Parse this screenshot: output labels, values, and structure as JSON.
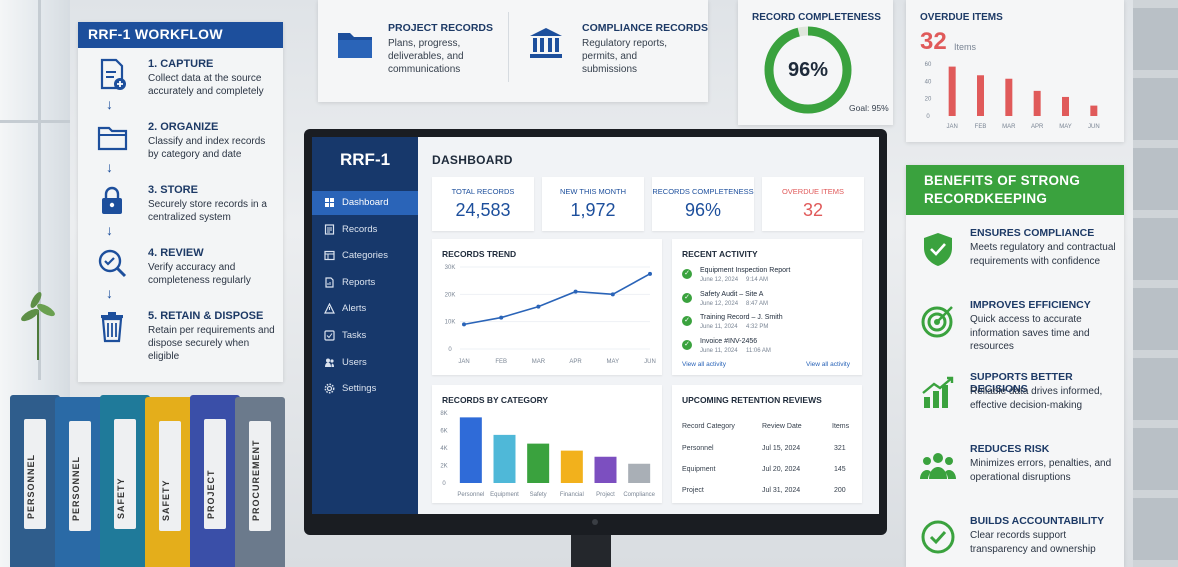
{
  "workflow": {
    "title": "RRF-1 WORKFLOW",
    "steps": [
      {
        "title": "1. CAPTURE",
        "desc": "Collect data at the source accurately and completely",
        "icon": "document-add-icon"
      },
      {
        "title": "2. ORGANIZE",
        "desc": "Classify and index records by category and date",
        "icon": "folder-icon"
      },
      {
        "title": "3. STORE",
        "desc": "Securely store records in a centralized system",
        "icon": "lock-icon"
      },
      {
        "title": "4. REVIEW",
        "desc": "Verify accuracy and completeness regularly",
        "icon": "magnify-check-icon"
      },
      {
        "title": "5. RETAIN & DISPOSE",
        "desc": "Retain per requirements and dispose securely when eligible",
        "icon": "trash-icon"
      }
    ]
  },
  "binders": [
    {
      "label": "PERSONNEL",
      "color": "#2f5d8c"
    },
    {
      "label": "PERSONNEL",
      "color": "#2a6aa6"
    },
    {
      "label": "SAFETY",
      "color": "#1f7a9a"
    },
    {
      "label": "SAFETY",
      "color": "#e4ae1b"
    },
    {
      "label": "PROJECT",
      "color": "#3a4fa8"
    },
    {
      "label": "PROCUREMENT",
      "color": "#6b7a8c"
    }
  ],
  "top_records": [
    {
      "title": "PROJECT RECORDS",
      "desc": "Plans, progress, deliverables, and communications",
      "icon": "folder-icon"
    },
    {
      "title": "COMPLIANCE RECORDS",
      "desc": "Regulatory reports, permits, and submissions",
      "icon": "building-icon"
    }
  ],
  "completeness_card": {
    "title": "RECORD COMPLETENESS",
    "value": "96%",
    "percent": 96,
    "goal": "Goal: 95%",
    "color": "#3aa23e"
  },
  "overdue_card": {
    "title": "OVERDUE ITEMS",
    "value": "32",
    "unit": "Items",
    "chart_data": {
      "type": "bar",
      "categories": [
        "JAN",
        "FEB",
        "MAR",
        "APR",
        "MAY",
        "JUN"
      ],
      "values": [
        57,
        47,
        43,
        29,
        22,
        12
      ],
      "ylim": [
        0,
        60
      ],
      "yticks": [
        "60",
        "40",
        "20",
        "0"
      ],
      "color": "#e05a5a"
    }
  },
  "benefits": {
    "title": "BENEFITS OF STRONG RECORDKEEPING",
    "items": [
      {
        "title": "ENSURES COMPLIANCE",
        "desc": "Meets regulatory and contractual requirements with confidence",
        "icon": "shield-check-icon"
      },
      {
        "title": "IMPROVES EFFICIENCY",
        "desc": "Quick access to accurate information saves time and resources",
        "icon": "target-icon"
      },
      {
        "title": "SUPPORTS BETTER DECISIONS",
        "desc": "Reliable data drives informed, effective decision-making",
        "icon": "bar-chart-icon"
      },
      {
        "title": "REDUCES RISK",
        "desc": "Minimizes errors, penalties, and operational disruptions",
        "icon": "users-icon"
      },
      {
        "title": "BUILDS ACCOUNTABILITY",
        "desc": "Clear records support transparency and ownership",
        "icon": "check-circle-icon"
      }
    ]
  },
  "app": {
    "brand": "RRF-1",
    "nav": [
      {
        "label": "Dashboard",
        "icon": "dashboard-icon",
        "active": true
      },
      {
        "label": "Records",
        "icon": "records-icon"
      },
      {
        "label": "Categories",
        "icon": "categories-icon"
      },
      {
        "label": "Reports",
        "icon": "reports-icon"
      },
      {
        "label": "Alerts",
        "icon": "alert-icon"
      },
      {
        "label": "Tasks",
        "icon": "tasks-icon"
      },
      {
        "label": "Users",
        "icon": "users-icon"
      },
      {
        "label": "Settings",
        "icon": "gear-icon"
      }
    ],
    "page_title": "DASHBOARD",
    "kpis": [
      {
        "label": "TOTAL RECORDS",
        "value": "24,583",
        "color": "#1d4f9c"
      },
      {
        "label": "NEW THIS MONTH",
        "value": "1,972",
        "color": "#1d4f9c"
      },
      {
        "label": "RECORDS COMPLETENESS",
        "value": "96%",
        "color": "#1d4f9c"
      },
      {
        "label": "OVERDUE ITEMS",
        "value": "32",
        "color": "#e05a5a"
      }
    ],
    "trend": {
      "title": "RECORDS TREND",
      "chart_data": {
        "type": "line",
        "categories": [
          "JAN",
          "FEB",
          "MAR",
          "APR",
          "MAY",
          "JUN"
        ],
        "values": [
          9000,
          11500,
          15500,
          21000,
          20000,
          27500
        ],
        "ylim": [
          0,
          30000
        ],
        "yticks": [
          "30K",
          "20K",
          "10K",
          "0"
        ],
        "color": "#2a64b8"
      }
    },
    "activity": {
      "title": "RECENT ACTIVITY",
      "items": [
        {
          "title": "Equipment Inspection Report",
          "date": "June 12, 2024",
          "time": "9:14 AM"
        },
        {
          "title": "Safety Audit – Site A",
          "date": "June 12, 2024",
          "time": "8:47 AM"
        },
        {
          "title": "Training Record – J. Smith",
          "date": "June 11, 2024",
          "time": "4:32 PM"
        },
        {
          "title": "Invoice #INV-2456",
          "date": "June 11, 2024",
          "time": "11:06 AM"
        }
      ],
      "link_left": "View all activity",
      "link_right": "View all activity"
    },
    "category": {
      "title": "RECORDS BY CATEGORY",
      "chart_data": {
        "type": "bar",
        "categories": [
          "Personnel",
          "Equipment",
          "Safety",
          "Financial",
          "Project",
          "Compliance"
        ],
        "values": [
          7500,
          5500,
          4500,
          3700,
          3000,
          2200
        ],
        "colors": [
          "#2f6bd8",
          "#4fb8d8",
          "#3aa23e",
          "#f2b11c",
          "#7c4fc0",
          "#a9afb6"
        ],
        "ylim": [
          0,
          8000
        ],
        "yticks": [
          "8K",
          "6K",
          "4K",
          "2K",
          "0"
        ]
      }
    },
    "retention": {
      "title": "UPCOMING RETENTION REVIEWS",
      "headers": [
        "Record Category",
        "Review Date",
        "Items"
      ],
      "rows": [
        [
          "Personnel",
          "Jul 15, 2024",
          "321"
        ],
        [
          "Equipment",
          "Jul 20, 2024",
          "145"
        ],
        [
          "Project",
          "Jul 31, 2024",
          "200"
        ]
      ]
    }
  }
}
